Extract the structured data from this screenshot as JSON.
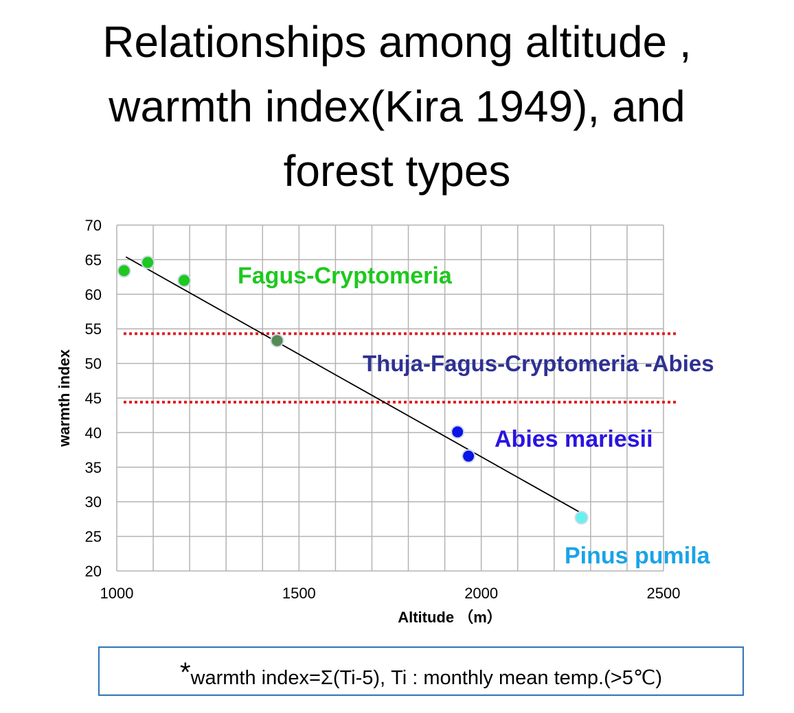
{
  "title_lines": [
    "Relationships among altitude ,",
    "warmth index(Kira 1949), and",
    "forest types"
  ],
  "chart_data": {
    "type": "scatter",
    "xlabel": "Altitude （m）",
    "ylabel": "warmth index",
    "xlim": [
      1000,
      2500
    ],
    "ylim": [
      20,
      70
    ],
    "x_ticks": [
      1000,
      1500,
      2000,
      2500
    ],
    "y_ticks": [
      20,
      25,
      30,
      35,
      40,
      45,
      50,
      55,
      60,
      65,
      70
    ],
    "grid": true,
    "colors": {
      "fagus": "#1ec81e",
      "transition": "#558a55",
      "abies": "#0a14e6",
      "pinus": "#66f0f0",
      "threshold": "#e02020",
      "fit": "#000000"
    },
    "points": [
      {
        "x": 1020,
        "y": 63.4,
        "group": "fagus"
      },
      {
        "x": 1085,
        "y": 64.6,
        "group": "fagus"
      },
      {
        "x": 1185,
        "y": 62.0,
        "group": "fagus"
      },
      {
        "x": 1440,
        "y": 53.3,
        "group": "transition"
      },
      {
        "x": 1935,
        "y": 40.1,
        "group": "abies"
      },
      {
        "x": 1965,
        "y": 36.6,
        "group": "abies"
      },
      {
        "x": 2275,
        "y": 27.7,
        "group": "pinus"
      }
    ],
    "trendline": {
      "x": [
        1025,
        2270
      ],
      "y": [
        65.4,
        28.5
      ]
    },
    "thresholds": [
      54.3,
      44.4
    ],
    "annotations": [
      {
        "text": "Fagus-Cryptomeria",
        "color": "#1ec81e"
      },
      {
        "text": "Thuja-Fagus-Cryptomeria -Abies",
        "color": "#2e3192"
      },
      {
        "text": "Abies mariesii",
        "color": "#2b14e0"
      },
      {
        "text": "Pinus pumila",
        "color": "#1aa3e8"
      }
    ]
  },
  "footnote": {
    "star": "*",
    "text": "warmth index=Σ(Ti-5),   Ti : monthly mean temp.(>5℃)"
  }
}
